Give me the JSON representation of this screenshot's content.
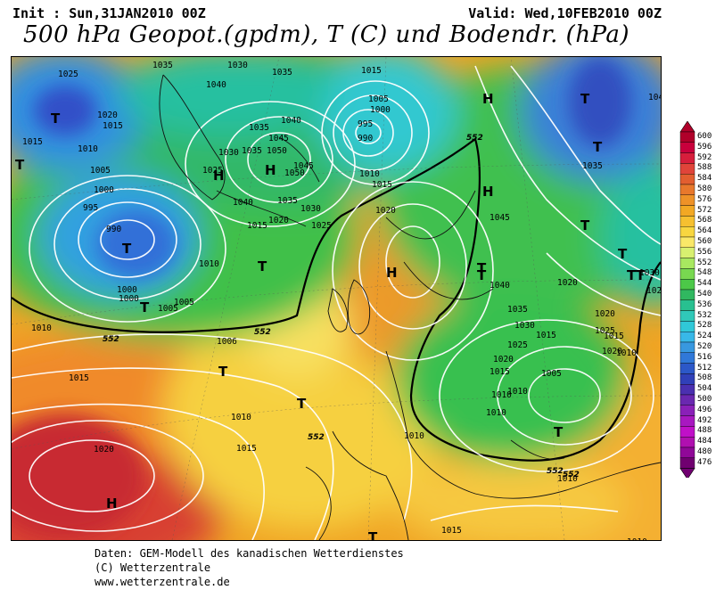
{
  "header": {
    "init": "Init : Sun,31JAN2010 00Z",
    "valid": "Valid: Wed,10FEB2010 00Z",
    "title": "500 hPa Geopot.(gpdm), T (C) und Bodendr. (hPa)"
  },
  "legend": {
    "values": [
      "600",
      "596",
      "592",
      "588",
      "584",
      "580",
      "576",
      "572",
      "568",
      "564",
      "560",
      "556",
      "552",
      "548",
      "544",
      "540",
      "536",
      "532",
      "528",
      "524",
      "520",
      "516",
      "512",
      "508",
      "504",
      "500",
      "496",
      "492",
      "488",
      "484",
      "480",
      "476"
    ],
    "colors": [
      "#b0002a",
      "#c8003c",
      "#d61e3c",
      "#e0443a",
      "#e25e30",
      "#e8782c",
      "#ee9228",
      "#f2a824",
      "#f6c030",
      "#f8d640",
      "#fae868",
      "#d8f070",
      "#a8e860",
      "#78d850",
      "#4cc848",
      "#30b860",
      "#28c090",
      "#30c8b8",
      "#30c8d8",
      "#38b8e8",
      "#3898e0",
      "#3078d8",
      "#2c58c8",
      "#3040b8",
      "#4a30b0",
      "#6a28b0",
      "#8a20b8",
      "#a818c0",
      "#c010c8",
      "#b010b0",
      "#900898",
      "#700070"
    ]
  },
  "map": {
    "pressure_labels": [
      {
        "text": "1025"
      },
      {
        "text": "1035"
      },
      {
        "text": "1030"
      },
      {
        "text": "1035"
      },
      {
        "text": "1015"
      },
      {
        "text": "1040"
      },
      {
        "text": "1020"
      },
      {
        "text": "1015"
      },
      {
        "text": "1015"
      },
      {
        "text": "1010"
      },
      {
        "text": "1035"
      },
      {
        "text": "1040"
      },
      {
        "text": "1045"
      },
      {
        "text": "1005"
      },
      {
        "text": "1000"
      },
      {
        "text": "995"
      },
      {
        "text": "990"
      },
      {
        "text": "1030"
      },
      {
        "text": "1035"
      },
      {
        "text": "1050"
      },
      {
        "text": "1025"
      },
      {
        "text": "1045"
      },
      {
        "text": "1050"
      },
      {
        "text": "1010"
      },
      {
        "text": "1015"
      },
      {
        "text": "1005"
      },
      {
        "text": "1000"
      },
      {
        "text": "1040"
      },
      {
        "text": "1035"
      },
      {
        "text": "1030"
      },
      {
        "text": "995"
      },
      {
        "text": "1020"
      },
      {
        "text": "1015"
      },
      {
        "text": "1025"
      },
      {
        "text": "1020"
      },
      {
        "text": "990"
      },
      {
        "text": "1010"
      },
      {
        "text": "1005"
      },
      {
        "text": "1000"
      },
      {
        "text": "1000"
      },
      {
        "text": "1005"
      },
      {
        "text": "1045"
      },
      {
        "text": "1040"
      },
      {
        "text": "1035"
      },
      {
        "text": "1030"
      },
      {
        "text": "1025"
      },
      {
        "text": "1020"
      },
      {
        "text": "1015"
      },
      {
        "text": "1010"
      },
      {
        "text": "1005"
      },
      {
        "text": "1006"
      },
      {
        "text": "1010"
      },
      {
        "text": "1015"
      },
      {
        "text": "1010"
      },
      {
        "text": "1015"
      },
      {
        "text": "1010"
      },
      {
        "text": "1010"
      },
      {
        "text": "1010"
      },
      {
        "text": "1020"
      },
      {
        "text": "1015"
      },
      {
        "text": "1020"
      },
      {
        "text": "1010"
      },
      {
        "text": "1020"
      },
      {
        "text": "1015"
      },
      {
        "text": "1045"
      },
      {
        "text": "1035"
      },
      {
        "text": "1030"
      },
      {
        "text": "1020"
      },
      {
        "text": "1025"
      },
      {
        "text": "1015"
      },
      {
        "text": "1010"
      },
      {
        "text": "1010"
      },
      {
        "text": "1030"
      },
      {
        "text": "102"
      }
    ],
    "pressure_systems": [
      {
        "text": "T"
      },
      {
        "text": "T"
      },
      {
        "text": "T"
      },
      {
        "text": "T"
      },
      {
        "text": "H"
      },
      {
        "text": "H"
      },
      {
        "text": "H"
      },
      {
        "text": "T"
      },
      {
        "text": "H"
      },
      {
        "text": "H"
      },
      {
        "text": "T"
      },
      {
        "text": "T"
      },
      {
        "text": "T"
      },
      {
        "text": "T"
      },
      {
        "text": "T"
      },
      {
        "text": "T"
      },
      {
        "text": "T"
      },
      {
        "text": "H"
      },
      {
        "text": "T"
      },
      {
        "text": "T"
      },
      {
        "text": "T"
      },
      {
        "text": "T"
      },
      {
        "text": "T"
      }
    ],
    "geopot_labels": [
      {
        "text": "552"
      },
      {
        "text": "552"
      },
      {
        "text": "552"
      },
      {
        "text": "552"
      },
      {
        "text": "552"
      },
      {
        "text": "552"
      }
    ]
  },
  "footer": {
    "line1": "Daten: GEM-Modell des kanadischen Wetterdienstes",
    "line2": "(C) Wetterzentrale",
    "line3": "www.wetterzentrale.de"
  }
}
